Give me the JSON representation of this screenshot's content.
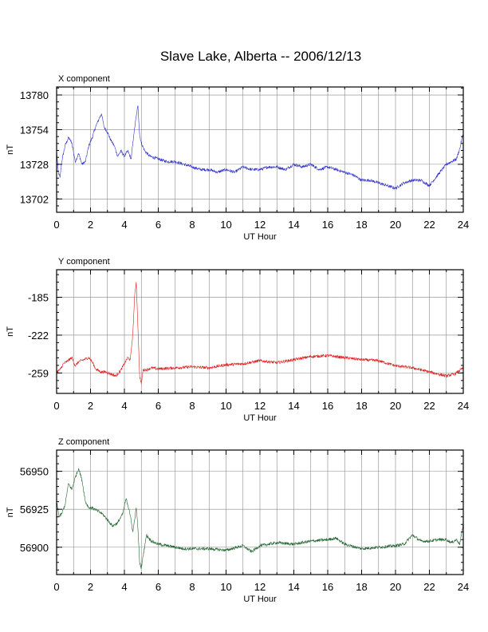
{
  "page_title": "Slave Lake, Alberta -- 2006/12/13",
  "chart_data": [
    {
      "type": "line",
      "title": "X component",
      "xlabel": "UT Hour",
      "ylabel": "nT",
      "xlim": [
        0,
        24
      ],
      "ylim": [
        13692,
        13786
      ],
      "xticks": [
        0,
        2,
        4,
        6,
        8,
        10,
        12,
        14,
        16,
        18,
        20,
        22,
        24
      ],
      "yticks": [
        13702,
        13728,
        13754,
        13780
      ],
      "grid": true,
      "color": "#3333cc",
      "series": [
        {
          "x": [
            0,
            0.1,
            0.2,
            0.3,
            0.5,
            0.7,
            0.9,
            1.1,
            1.3,
            1.5,
            1.7,
            1.9,
            2.1,
            2.3,
            2.5,
            2.65,
            2.8,
            3.0,
            3.2,
            3.4,
            3.6,
            3.8,
            4.0,
            4.2,
            4.4,
            4.55,
            4.7,
            4.8,
            4.9,
            5.0,
            5.2,
            5.5,
            6.0,
            6.5,
            7.0,
            7.5,
            8.0,
            8.5,
            9.0,
            9.5,
            10.0,
            10.5,
            11.0,
            11.5,
            12.0,
            12.5,
            13.0,
            13.5,
            14.0,
            14.5,
            15.0,
            15.5,
            16.0,
            16.5,
            17.0,
            17.5,
            18.0,
            18.5,
            19.0,
            19.5,
            20.0,
            20.5,
            21.0,
            21.5,
            22.0,
            22.5,
            23.0,
            23.3,
            23.6,
            23.8,
            24.0
          ],
          "y": [
            13738,
            13722,
            13718,
            13730,
            13742,
            13748,
            13744,
            13730,
            13736,
            13728,
            13730,
            13742,
            13748,
            13756,
            13762,
            13766,
            13756,
            13752,
            13746,
            13742,
            13734,
            13738,
            13734,
            13738,
            13732,
            13750,
            13764,
            13772,
            13750,
            13744,
            13738,
            13734,
            13732,
            13730,
            13730,
            13728,
            13726,
            13724,
            13724,
            13722,
            13724,
            13722,
            13726,
            13724,
            13724,
            13726,
            13726,
            13724,
            13728,
            13726,
            13728,
            13724,
            13726,
            13724,
            13722,
            13720,
            13716,
            13716,
            13714,
            13712,
            13710,
            13714,
            13716,
            13716,
            13712,
            13720,
            13728,
            13730,
            13732,
            13740,
            13752
          ]
        }
      ]
    },
    {
      "type": "line",
      "title": "Y component",
      "xlabel": "UT Hour",
      "ylabel": "nT",
      "xlim": [
        0,
        24
      ],
      "ylim": [
        -279,
        -158
      ],
      "xticks": [
        0,
        2,
        4,
        6,
        8,
        10,
        12,
        14,
        16,
        18,
        20,
        22,
        24
      ],
      "yticks": [
        -259,
        -222,
        -185
      ],
      "grid": true,
      "color": "#dd2222",
      "series": [
        {
          "x": [
            0,
            0.2,
            0.4,
            0.6,
            0.9,
            1.1,
            1.3,
            1.6,
            1.9,
            2.1,
            2.3,
            2.6,
            2.9,
            3.2,
            3.5,
            3.8,
            4.0,
            4.2,
            4.35,
            4.5,
            4.6,
            4.7,
            4.8,
            4.9,
            5.0,
            5.1,
            5.3,
            5.6,
            6.0,
            7.0,
            8.0,
            9.0,
            10.0,
            11.0,
            12.0,
            13.0,
            14.0,
            15.0,
            16.0,
            17.0,
            18.0,
            19.0,
            20.0,
            21.0,
            22.0,
            22.5,
            23.0,
            23.5,
            24.0
          ],
          "y": [
            -258,
            -256,
            -250,
            -248,
            -244,
            -252,
            -248,
            -246,
            -244,
            -248,
            -255,
            -258,
            -258,
            -260,
            -262,
            -256,
            -250,
            -244,
            -246,
            -220,
            -185,
            -170,
            -215,
            -262,
            -270,
            -256,
            -256,
            -254,
            -255,
            -254,
            -253,
            -254,
            -251,
            -250,
            -247,
            -249,
            -246,
            -243,
            -242,
            -244,
            -246,
            -247,
            -252,
            -254,
            -258,
            -260,
            -262,
            -260,
            -254
          ]
        }
      ]
    },
    {
      "type": "line",
      "title": "Z component",
      "xlabel": "UT Hour",
      "ylabel": "nT",
      "xlim": [
        0,
        24
      ],
      "ylim": [
        56882,
        56964
      ],
      "xticks": [
        0,
        2,
        4,
        6,
        8,
        10,
        12,
        14,
        16,
        18,
        20,
        22,
        24
      ],
      "yticks": [
        56900,
        56925,
        56950
      ],
      "grid": true,
      "color": "#226633",
      "series": [
        {
          "x": [
            0,
            0.15,
            0.3,
            0.5,
            0.7,
            0.9,
            1.1,
            1.3,
            1.5,
            1.7,
            1.9,
            2.1,
            2.4,
            2.7,
            3.0,
            3.3,
            3.6,
            3.9,
            4.1,
            4.3,
            4.5,
            4.6,
            4.7,
            4.8,
            4.9,
            5.0,
            5.1,
            5.3,
            5.6,
            6.0,
            6.5,
            7.0,
            7.5,
            8.0,
            9.0,
            10.0,
            11.0,
            11.5,
            12.0,
            13.0,
            14.0,
            15.0,
            16.0,
            16.5,
            17.0,
            18.0,
            19.0,
            20.0,
            20.5,
            21.0,
            21.5,
            22.0,
            22.5,
            23.0,
            23.3,
            23.6,
            23.8,
            24.0
          ],
          "y": [
            56930,
            56920,
            56922,
            56928,
            56942,
            56938,
            56946,
            56952,
            56944,
            56930,
            56926,
            56926,
            56924,
            56922,
            56918,
            56914,
            56916,
            56922,
            56932,
            56924,
            56910,
            56918,
            56926,
            56912,
            56890,
            56886,
            56894,
            56908,
            56904,
            56902,
            56901,
            56900,
            56899,
            56899,
            56899,
            56898,
            56901,
            56897,
            56901,
            56903,
            56902,
            56904,
            56905,
            56906,
            56902,
            56899,
            56900,
            56901,
            56902,
            56908,
            56904,
            56904,
            56905,
            56905,
            56903,
            56905,
            56902,
            56916
          ]
        }
      ]
    }
  ]
}
